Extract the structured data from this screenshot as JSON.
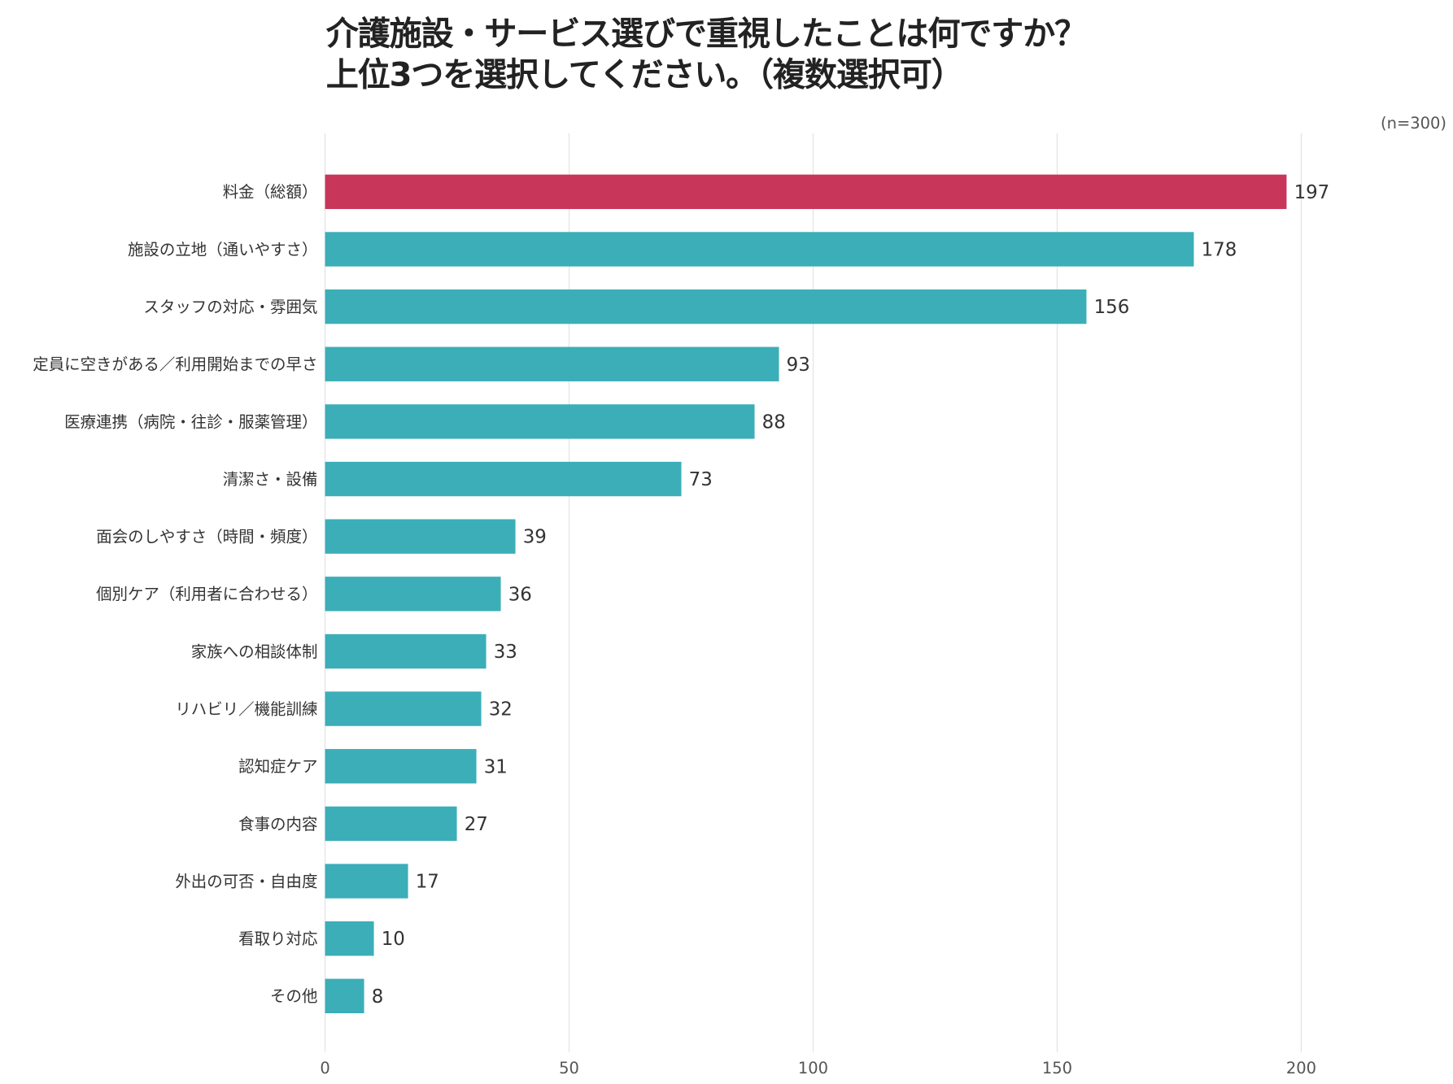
{
  "chart_data": {
    "type": "bar",
    "orientation": "horizontal",
    "title_lines": [
      "介護施設・サービス選びで重視したことは何ですか？",
      "上位3つを選択してください。（複数選択可）"
    ],
    "note": "(n=300)",
    "categories": [
      "料金（総額）",
      "施設の立地（通いやすさ）",
      "スタッフの対応・雰囲気",
      "定員に空きがある／利用開始までの早さ",
      "医療連携（病院・往診・服薬管理）",
      "清潔さ・設備",
      "面会のしやすさ（時間・頻度）",
      "個別ケア（利用者に合わせる）",
      "家族への相談体制",
      "リハビリ／機能訓練",
      "認知症ケア",
      "食事の内容",
      "外出の可否・自由度",
      "看取り対応",
      "その他"
    ],
    "values": [
      197,
      178,
      156,
      93,
      88,
      73,
      39,
      36,
      33,
      32,
      31,
      27,
      17,
      10,
      8
    ],
    "xlim": [
      0,
      200
    ],
    "xticks": [
      "0",
      "50",
      "100",
      "150",
      "200"
    ],
    "grid": true,
    "colors": {
      "highlight": "#C8365A",
      "default": "#3CAEB8"
    }
  }
}
